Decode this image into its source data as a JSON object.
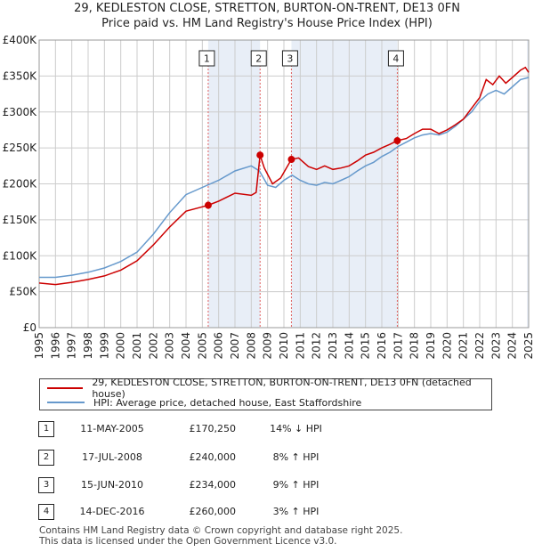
{
  "title": {
    "line1": "29, KEDLESTON CLOSE, STRETTON, BURTON-ON-TRENT, DE13 0FN",
    "line2": "Price paid vs. HM Land Registry's House Price Index (HPI)"
  },
  "colors": {
    "property": "#cc0000",
    "hpi": "#6699cc",
    "shade": "#e8eef7",
    "grid": "#cccccc"
  },
  "chart_data": {
    "type": "line",
    "title": "Price paid vs. HM Land Registry's House Price Index (HPI)",
    "xlim": [
      1995,
      2025
    ],
    "ylim": [
      0,
      400000
    ],
    "yticks": [
      0,
      50000,
      100000,
      150000,
      200000,
      250000,
      300000,
      350000,
      400000
    ],
    "ytick_labels": [
      "£0",
      "£50K",
      "£100K",
      "£150K",
      "£200K",
      "£250K",
      "£300K",
      "£350K",
      "£400K"
    ],
    "xticks": [
      "1995",
      "1996",
      "1997",
      "1998",
      "1999",
      "2000",
      "2001",
      "2002",
      "2003",
      "2004",
      "2005",
      "2006",
      "2007",
      "2008",
      "2009",
      "2010",
      "2011",
      "2012",
      "2013",
      "2014",
      "2015",
      "2016",
      "2017",
      "2018",
      "2019",
      "2020",
      "2021",
      "2022",
      "2023",
      "2024",
      "2025"
    ],
    "series": [
      {
        "name": "29, KEDLESTON CLOSE, STRETTON, BURTON-ON-TRENT, DE13 0FN (detached house)",
        "points": [
          [
            1995.0,
            62000
          ],
          [
            1996.0,
            60000
          ],
          [
            1997.0,
            63000
          ],
          [
            1998.0,
            67000
          ],
          [
            1999.0,
            72000
          ],
          [
            2000.0,
            80000
          ],
          [
            2001.0,
            93000
          ],
          [
            2002.0,
            115000
          ],
          [
            2003.0,
            140000
          ],
          [
            2004.0,
            162000
          ],
          [
            2005.0,
            168000
          ],
          [
            2005.36,
            170250
          ],
          [
            2006.0,
            176000
          ],
          [
            2007.0,
            187000
          ],
          [
            2008.0,
            184000
          ],
          [
            2008.3,
            188000
          ],
          [
            2008.54,
            240000
          ],
          [
            2008.8,
            222000
          ],
          [
            2009.3,
            200000
          ],
          [
            2009.8,
            208000
          ],
          [
            2010.46,
            234000
          ],
          [
            2010.9,
            236000
          ],
          [
            2011.5,
            224000
          ],
          [
            2012.0,
            220000
          ],
          [
            2012.5,
            225000
          ],
          [
            2013.0,
            220000
          ],
          [
            2013.5,
            222000
          ],
          [
            2014.0,
            225000
          ],
          [
            2014.5,
            232000
          ],
          [
            2015.0,
            240000
          ],
          [
            2015.5,
            244000
          ],
          [
            2016.0,
            250000
          ],
          [
            2016.5,
            255000
          ],
          [
            2016.95,
            260000
          ],
          [
            2017.5,
            263000
          ],
          [
            2018.0,
            270000
          ],
          [
            2018.5,
            276000
          ],
          [
            2019.0,
            276000
          ],
          [
            2019.5,
            270000
          ],
          [
            2020.0,
            275000
          ],
          [
            2020.5,
            282000
          ],
          [
            2021.0,
            290000
          ],
          [
            2021.5,
            305000
          ],
          [
            2022.0,
            320000
          ],
          [
            2022.4,
            345000
          ],
          [
            2022.8,
            338000
          ],
          [
            2023.2,
            350000
          ],
          [
            2023.6,
            340000
          ],
          [
            2024.0,
            348000
          ],
          [
            2024.5,
            358000
          ],
          [
            2024.8,
            362000
          ],
          [
            2025.0,
            355000
          ]
        ]
      },
      {
        "name": "HPI: Average price, detached house, East Staffordshire",
        "points": [
          [
            1995.0,
            70000
          ],
          [
            1996.0,
            70000
          ],
          [
            1997.0,
            73000
          ],
          [
            1998.0,
            77000
          ],
          [
            1999.0,
            83000
          ],
          [
            2000.0,
            92000
          ],
          [
            2001.0,
            105000
          ],
          [
            2002.0,
            130000
          ],
          [
            2003.0,
            160000
          ],
          [
            2004.0,
            185000
          ],
          [
            2005.0,
            195000
          ],
          [
            2006.0,
            205000
          ],
          [
            2007.0,
            218000
          ],
          [
            2008.0,
            225000
          ],
          [
            2008.5,
            218000
          ],
          [
            2009.0,
            198000
          ],
          [
            2009.5,
            195000
          ],
          [
            2010.0,
            205000
          ],
          [
            2010.5,
            212000
          ],
          [
            2011.0,
            205000
          ],
          [
            2011.5,
            200000
          ],
          [
            2012.0,
            198000
          ],
          [
            2012.5,
            202000
          ],
          [
            2013.0,
            200000
          ],
          [
            2013.5,
            205000
          ],
          [
            2014.0,
            210000
          ],
          [
            2014.5,
            218000
          ],
          [
            2015.0,
            225000
          ],
          [
            2015.5,
            230000
          ],
          [
            2016.0,
            238000
          ],
          [
            2016.5,
            244000
          ],
          [
            2017.0,
            252000
          ],
          [
            2017.5,
            258000
          ],
          [
            2018.0,
            264000
          ],
          [
            2018.5,
            268000
          ],
          [
            2019.0,
            270000
          ],
          [
            2019.5,
            268000
          ],
          [
            2020.0,
            272000
          ],
          [
            2020.5,
            280000
          ],
          [
            2021.0,
            290000
          ],
          [
            2021.5,
            300000
          ],
          [
            2022.0,
            315000
          ],
          [
            2022.5,
            325000
          ],
          [
            2023.0,
            330000
          ],
          [
            2023.5,
            325000
          ],
          [
            2024.0,
            335000
          ],
          [
            2024.5,
            345000
          ],
          [
            2025.0,
            348000
          ]
        ]
      }
    ],
    "transactions": [
      {
        "label": "1",
        "x": 2005.36,
        "price": 170250
      },
      {
        "label": "2",
        "x": 2008.54,
        "price": 240000
      },
      {
        "label": "3",
        "x": 2010.46,
        "price": 234000
      },
      {
        "label": "4",
        "x": 2016.95,
        "price": 260000
      }
    ],
    "shaded_spans": [
      [
        2005.36,
        2008.54
      ],
      [
        2010.46,
        2016.95
      ],
      [
        2024.9,
        2025.0
      ]
    ]
  },
  "legend": {
    "property": "29, KEDLESTON CLOSE, STRETTON, BURTON-ON-TRENT, DE13 0FN (detached house)",
    "hpi": "HPI: Average price, detached house, East Staffordshire"
  },
  "transactions": [
    {
      "num": "1",
      "date": "11-MAY-2005",
      "price": "£170,250",
      "hpi": "14% ↓ HPI"
    },
    {
      "num": "2",
      "date": "17-JUL-2008",
      "price": "£240,000",
      "hpi": "8% ↑ HPI"
    },
    {
      "num": "3",
      "date": "15-JUN-2010",
      "price": "£234,000",
      "hpi": "9% ↑ HPI"
    },
    {
      "num": "4",
      "date": "14-DEC-2016",
      "price": "£260,000",
      "hpi": "3% ↑ HPI"
    }
  ],
  "footer": {
    "line1": "Contains HM Land Registry data © Crown copyright and database right 2025.",
    "line2": "This data is licensed under the Open Government Licence v3.0."
  }
}
